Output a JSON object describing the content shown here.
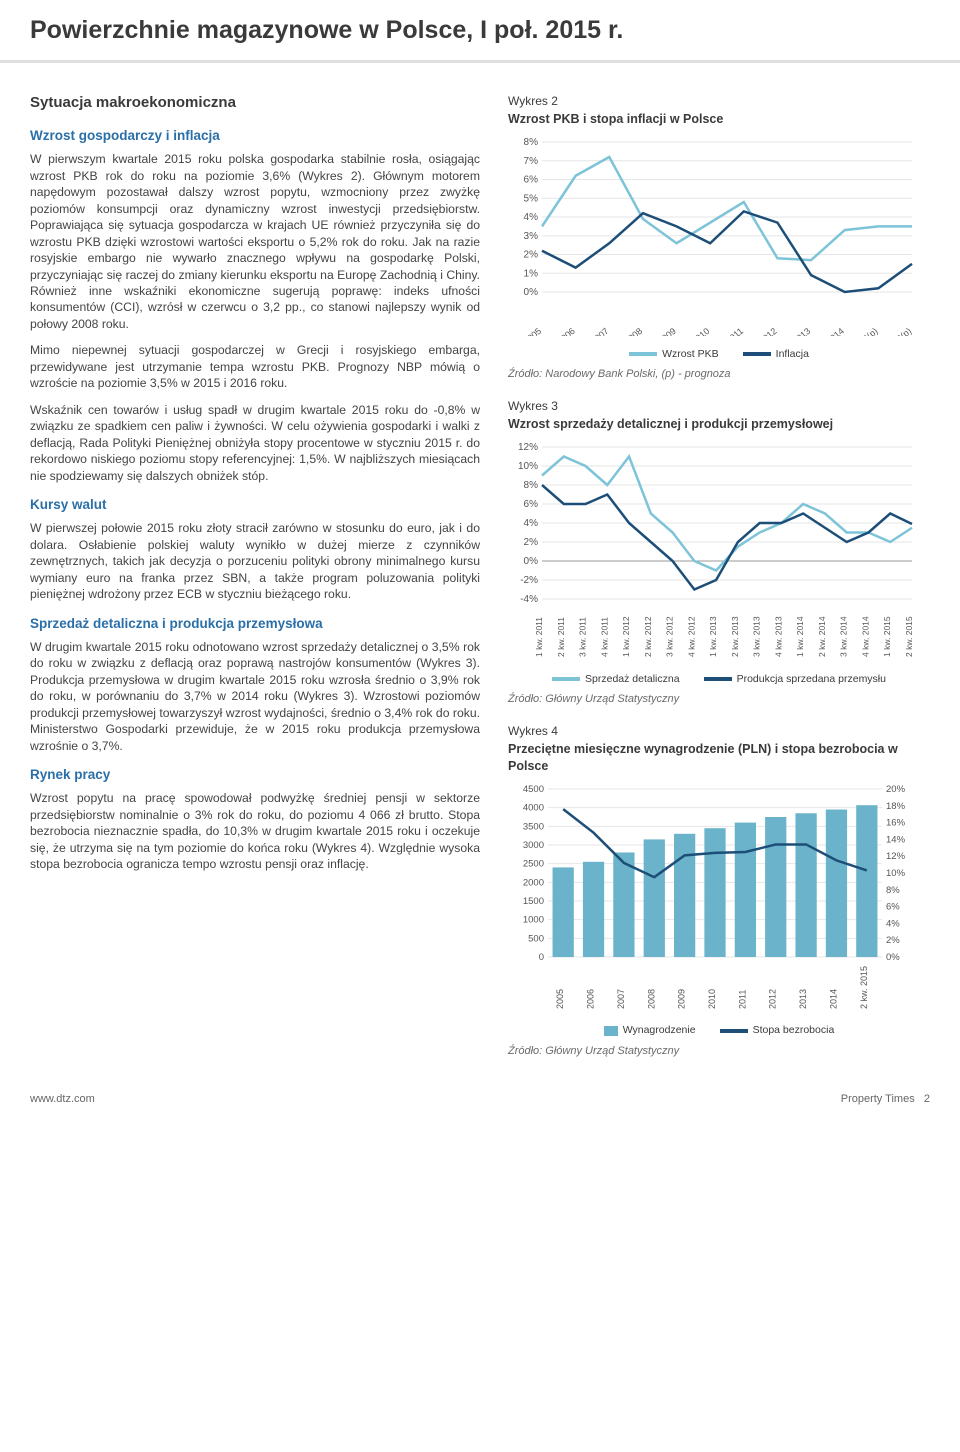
{
  "page_title": "Powierzchnie magazynowe w Polsce, I poł. 2015 r.",
  "section_title": "Sytuacja makroekonomiczna",
  "headings": {
    "h1": "Wzrost gospodarczy i inflacja",
    "h2": "Kursy walut",
    "h3": "Sprzedaż detaliczna i produkcja przemysłowa",
    "h4": "Rynek pracy"
  },
  "paragraphs": {
    "p1": "W pierwszym kwartale 2015 roku polska gospodarka stabilnie rosła, osiągając wzrost PKB rok do roku na poziomie 3,6% (Wykres 2). Głównym motorem napędowym pozostawał dalszy wzrost popytu, wzmocniony przez zwyżkę poziomów konsumpcji oraz dynamiczny wzrost inwestycji przedsiębiorstw. Poprawiająca się sytuacja gospodarcza w krajach UE również przyczyniła się do wzrostu PKB dzięki wzrostowi wartości eksportu o 5,2% rok do roku. Jak na razie rosyjskie embargo nie wywarło znacznego wpływu na gospodarkę Polski, przyczyniając się raczej do zmiany kierunku eksportu na Europę Zachodnią i Chiny. Również inne wskaźniki ekonomiczne sugerują poprawę: indeks ufności konsumentów (CCI), wzrósł w czerwcu o 3,2 pp., co stanowi najlepszy wynik od połowy 2008 roku.",
    "p2": "Mimo niepewnej sytuacji gospodarczej w Grecji i rosyjskiego embarga, przewidywane jest utrzymanie tempa wzrostu PKB. Prognozy NBP mówią o wzroście na poziomie 3,5% w 2015 i 2016 roku.",
    "p3": "Wskaźnik cen towarów i usług spadł w drugim kwartale 2015 roku do -0,8% w związku ze spadkiem cen paliw i żywności. W celu ożywienia gospodarki i walki z deflacją, Rada Polityki Pieniężnej obniżyła stopy procentowe w styczniu 2015 r. do rekordowo niskiego poziomu stopy referencyjnej: 1,5%. W najbliższych miesiącach nie spodziewamy się dalszych obniżek stóp.",
    "p4": "W pierwszej połowie 2015 roku złoty stracił zarówno w stosunku do euro, jak i do dolara. Osłabienie polskiej waluty wynikło w dużej mierze z czynników zewnętrznych, takich jak decyzja o porzuceniu polityki obrony minimalnego kursu wymiany euro na franka przez SBN, a także program poluzowania polityki pieniężnej wdrożony przez ECB w styczniu bieżącego roku.",
    "p5": "W drugim kwartale 2015 roku odnotowano wzrost sprzedaży detalicznej o 3,5% rok do roku w związku z deflacją oraz poprawą nastrojów konsumentów (Wykres 3). Produkcja przemysłowa w drugim kwartale 2015 roku wzrosła średnio o 3,9% rok do roku, w porównaniu do 3,7% w 2014 roku (Wykres 3). Wzrostowi poziomów produkcji przemysłowej towarzyszył wzrost wydajności, średnio o 3,4% rok do roku. Ministerstwo Gospodarki przewiduje, że w 2015 roku produkcja przemysłowa wzrośnie o 3,7%.",
    "p6": "Wzrost popytu na pracę spowodował podwyżkę średniej pensji w sektorze przedsiębiorstw nominalnie o 3% rok do roku, do poziomu 4 066 zł brutto. Stopa bezrobocia nieznacznie spadła, do 10,3% w drugim kwartale 2015 roku i oczekuje się, że utrzyma się na tym poziomie do końca roku (Wykres 4). Względnie wysoka stopa bezrobocia ogranicza tempo wzrostu pensji oraz inflację."
  },
  "chart2": {
    "label": "Wykres 2",
    "title": "Wzrost PKB i stopa inflacji w Polsce",
    "type": "line",
    "categories": [
      "2005",
      "2006",
      "2007",
      "2008",
      "2009",
      "2010",
      "2011",
      "2012",
      "2013",
      "2014",
      "2015(p)",
      "2016(p)"
    ],
    "series": [
      {
        "name": "Wzrost PKB",
        "color": "#7dc4d8",
        "values": [
          3.5,
          6.2,
          7.2,
          3.9,
          2.6,
          3.7,
          4.8,
          1.8,
          1.7,
          3.3,
          3.5,
          3.5
        ]
      },
      {
        "name": "Inflacja",
        "color": "#1d4e78",
        "values": [
          2.2,
          1.3,
          2.6,
          4.2,
          3.5,
          2.6,
          4.3,
          3.7,
          0.9,
          0.0,
          0.2,
          1.5
        ]
      }
    ],
    "ylim": [
      0,
      8
    ],
    "ystep": 1,
    "background": "#ffffff",
    "grid_color": "#e6e6e6",
    "source": "Źródło: Narodowy Bank Polski, (p) - prognoza"
  },
  "chart3": {
    "label": "Wykres 3",
    "title": "Wzrost sprzedaży detalicznej i produkcji przemysłowej",
    "type": "line",
    "categories": [
      "1 kw. 2011",
      "2 kw. 2011",
      "3 kw. 2011",
      "4 kw. 2011",
      "1 kw. 2012",
      "2 kw. 2012",
      "3 kw. 2012",
      "4 kw. 2012",
      "1 kw. 2013",
      "2 kw. 2013",
      "3 kw. 2013",
      "4 kw. 2013",
      "1 kw. 2014",
      "2 kw. 2014",
      "3 kw. 2014",
      "4 kw. 2014",
      "1 kw. 2015",
      "2 kw. 2015"
    ],
    "series": [
      {
        "name": "Sprzedaż detaliczna",
        "color": "#7dc4d8",
        "values": [
          9,
          11,
          10,
          8,
          11,
          5,
          3,
          0,
          -1,
          1.5,
          3,
          4,
          6,
          5,
          3,
          3,
          2,
          3.5
        ]
      },
      {
        "name": "Produkcja sprzedana przemysłu",
        "color": "#1d4e78",
        "values": [
          8,
          6,
          6,
          7,
          4,
          2,
          0,
          -3,
          -2,
          2,
          4,
          4,
          5,
          3.5,
          2,
          3,
          5,
          3.9
        ]
      }
    ],
    "ylim": [
      -4,
      12
    ],
    "ystep": 2,
    "background": "#ffffff",
    "grid_color": "#e6e6e6",
    "source": "Źródło: Główny Urząd Statystyczny"
  },
  "chart4": {
    "label": "Wykres 4",
    "title": "Przeciętne miesięczne wynagrodzenie (PLN) i stopa bezrobocia w Polsce",
    "type": "bar+line",
    "categories": [
      "2005",
      "2006",
      "2007",
      "2008",
      "2009",
      "2010",
      "2011",
      "2012",
      "2013",
      "2014",
      "2 kw. 2015"
    ],
    "bars": {
      "name": "Wynagrodzenie",
      "color": "#6ab3ca",
      "values": [
        2400,
        2550,
        2800,
        3150,
        3300,
        3450,
        3600,
        3750,
        3850,
        3950,
        4066
      ]
    },
    "line": {
      "name": "Stopa bezrobocia",
      "color": "#1d4e78",
      "values": [
        17.6,
        14.8,
        11.2,
        9.5,
        12.1,
        12.4,
        12.5,
        13.4,
        13.4,
        11.5,
        10.3
      ]
    },
    "y1lim": [
      0,
      4500
    ],
    "y1step": 500,
    "y2lim": [
      0,
      20
    ],
    "y2step": 2,
    "background": "#ffffff",
    "grid_color": "#e6e6e6",
    "source": "Źródło: Główny Urząd Statystyczny"
  },
  "footer": {
    "left": "www.dtz.com",
    "right": "Property Times",
    "page": "2"
  }
}
